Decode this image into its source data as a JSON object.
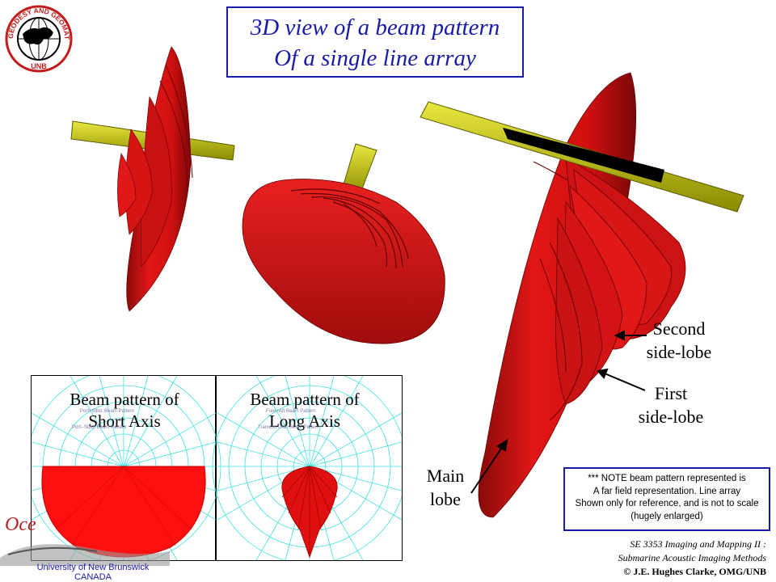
{
  "title": {
    "line1": "3D view of a beam pattern",
    "line2": "Of a single line array"
  },
  "logo": {
    "text": "GEODESY AND GEOMATICS ENGINEERING",
    "sub": "UNB"
  },
  "labels": {
    "second_sidelobe": {
      "line1": "Second",
      "line2": "side-lobe"
    },
    "first_sidelobe": {
      "line1": "First",
      "line2": "side-lobe"
    },
    "main_lobe": {
      "line1": "Main",
      "line2": "lobe"
    }
  },
  "panels": {
    "short_axis": {
      "title1": "Beam pattern of",
      "title2": "Short Axis",
      "sub1": "Port+Stbd. Beam Pattern",
      "sub2": "Port--Stbd. Beam Pattern"
    },
    "long_axis": {
      "title1": "Beam pattern of",
      "title2": "Long Axis",
      "sub1": "Fore+Aft Beam Pattern",
      "sub2": "Transmit Gain Beam Pattern"
    }
  },
  "note": {
    "line1": "*** NOTE beam pattern represented is",
    "line2": "A far field representation. Line array",
    "line3": "Shown only for reference, and is not to scale",
    "line4": "(hugely enlarged)"
  },
  "course": {
    "line1": "SE 3353 Imaging and Mapping II :",
    "line2": "Submarine Acoustic Imaging Methods",
    "copyright": "© J.E. Hughes Clarke, OMG/UNB"
  },
  "footer_logo": {
    "partial": "Oce",
    "university": "University of New Brunswick",
    "country": "CANADA"
  },
  "colors": {
    "lobe": "#e01515",
    "array": "#c8c800",
    "title": "#1a1aa8",
    "grid": "#40e0e0"
  }
}
